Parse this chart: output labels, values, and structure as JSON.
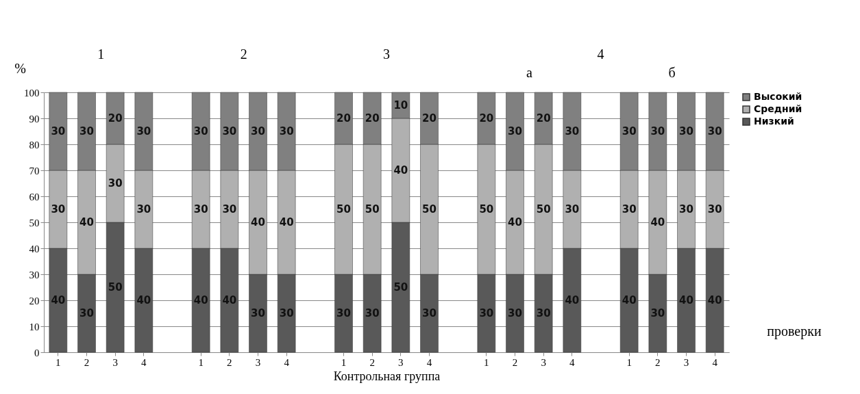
{
  "chart_data": {
    "type": "bar",
    "stacked": true,
    "categories": [
      "1",
      "2",
      "3",
      "4",
      null,
      "1",
      "2",
      "3",
      "4",
      null,
      "1",
      "2",
      "3",
      "4",
      null,
      "1",
      "2",
      "3",
      "4",
      null,
      "1",
      "2",
      "3",
      "4"
    ],
    "series": [
      {
        "name": "Низкий",
        "color": "#595959",
        "values": [
          40,
          30,
          50,
          40,
          null,
          40,
          40,
          30,
          30,
          null,
          30,
          30,
          50,
          30,
          null,
          30,
          30,
          30,
          40,
          null,
          40,
          30,
          40,
          40
        ]
      },
      {
        "name": "Средний",
        "color": "#b0b0b0",
        "values": [
          30,
          40,
          30,
          30,
          null,
          30,
          30,
          40,
          40,
          null,
          50,
          50,
          40,
          50,
          null,
          50,
          40,
          50,
          30,
          null,
          30,
          40,
          30,
          30
        ]
      },
      {
        "name": "Высокий",
        "color": "#808080",
        "values": [
          30,
          30,
          20,
          30,
          null,
          30,
          30,
          30,
          30,
          null,
          20,
          20,
          10,
          20,
          null,
          20,
          30,
          20,
          30,
          null,
          30,
          30,
          30,
          30
        ]
      }
    ],
    "ylim": [
      0,
      100
    ],
    "yticks": [
      0,
      10,
      20,
      30,
      40,
      50,
      60,
      70,
      80,
      90,
      100
    ],
    "ylabel": "%",
    "xlabel": "Контрольная группа",
    "annotations": [
      "1",
      "2",
      "3",
      "4",
      "а",
      "б",
      "проверки"
    ],
    "grid": "y",
    "legend": "right",
    "data_labels": true
  }
}
